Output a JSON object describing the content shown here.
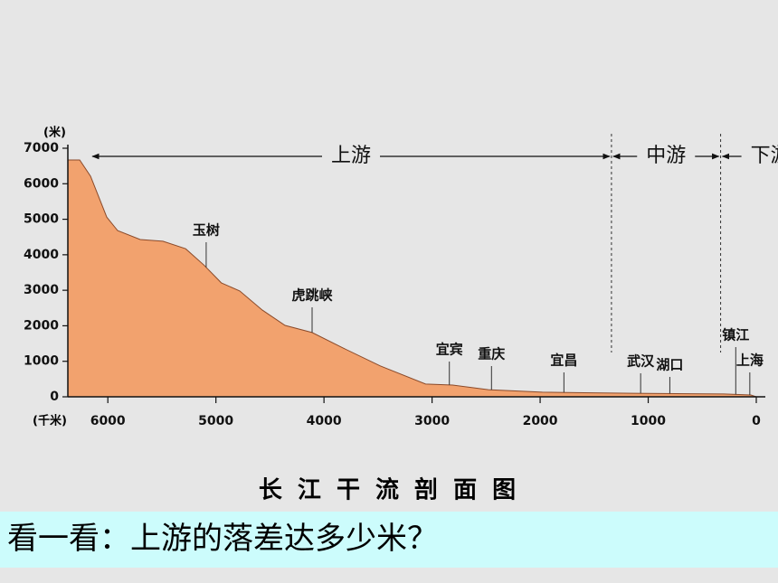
{
  "chart_data": {
    "type": "area",
    "title": "长 江 干 流 剖 面 图",
    "y_label": "(米)",
    "x_label": "(千米)",
    "x": [
      6368,
      6260,
      6160,
      6010,
      5910,
      5700,
      5490,
      5280,
      5110,
      4950,
      4780,
      4570,
      4360,
      4110,
      3820,
      3480,
      3060,
      2810,
      2480,
      1980,
      1140,
      300,
      50,
      0
    ],
    "values": [
      6670,
      6670,
      6210,
      5060,
      4680,
      4430,
      4380,
      4170,
      3710,
      3210,
      2980,
      2440,
      2010,
      1810,
      1370,
      870,
      360,
      330,
      200,
      130,
      100,
      80,
      50,
      0
    ],
    "color": "#f2a26e",
    "xlim": [
      6370,
      0
    ],
    "xticks": [
      6000,
      5000,
      4000,
      3000,
      2000,
      1000,
      0
    ],
    "ylim": [
      0,
      7000
    ],
    "yticks": [
      0,
      1000,
      2000,
      3000,
      4000,
      5000,
      6000,
      7000
    ],
    "annotations": [
      {
        "label": "玉树",
        "x": 5090
      },
      {
        "label": "虎跳峡",
        "x": 4110
      },
      {
        "label": "宜宾",
        "x": 2840
      },
      {
        "label": "重庆",
        "x": 2450
      },
      {
        "label": "宜昌",
        "x": 1780
      },
      {
        "label": "武汉",
        "x": 1070
      },
      {
        "label": "湖口",
        "x": 800
      },
      {
        "label": "镇江",
        "x": 190
      },
      {
        "label": "上海",
        "x": 60
      }
    ],
    "regions": [
      {
        "label": "上游",
        "from": 6160,
        "to": 1340
      },
      {
        "label": "中游",
        "from": 1340,
        "to": 330
      },
      {
        "label": "下游",
        "from": 330,
        "to": 0
      }
    ]
  },
  "caption": "看一看：上游的落差达多少米？"
}
